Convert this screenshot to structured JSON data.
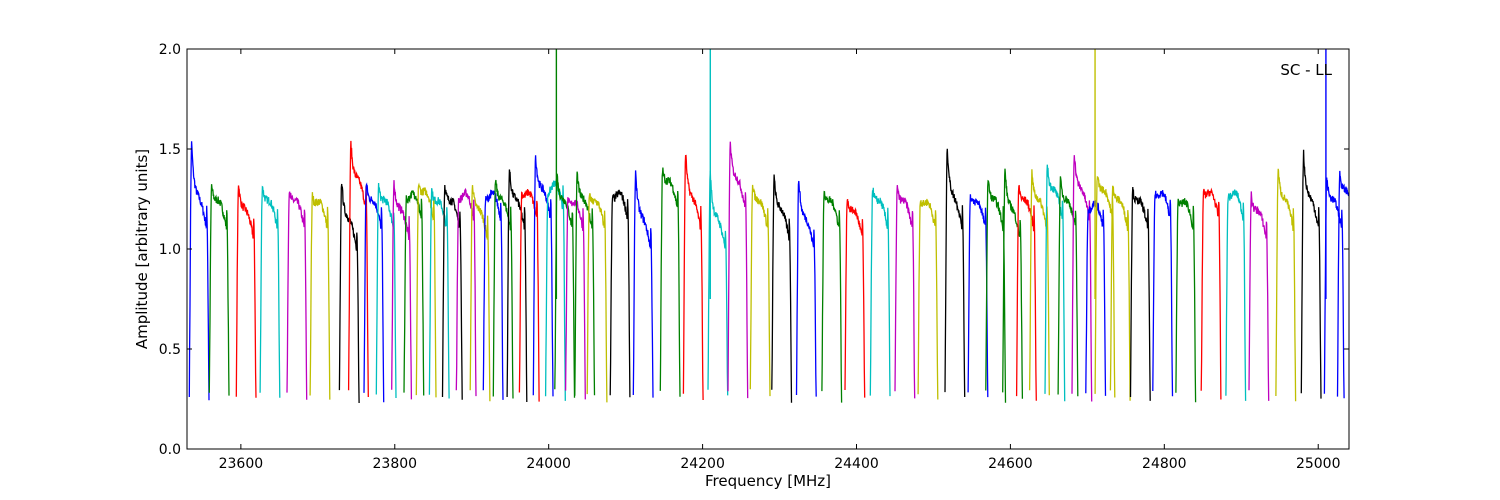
{
  "chart_data": {
    "type": "line",
    "xlabel": "Frequency [MHz]",
    "ylabel": "Amplitude [arbitrary units]",
    "annotation": "SC - LL",
    "annotation_position": "top-right",
    "xlim": [
      23530,
      25040
    ],
    "ylim": [
      0.0,
      2.0
    ],
    "xticks": [
      23600,
      23800,
      24000,
      24200,
      24400,
      24600,
      24800,
      25000
    ],
    "yticks": [
      0.0,
      0.5,
      1.0,
      1.5,
      2.0
    ],
    "xtick_labels": [
      "23600",
      "23800",
      "24000",
      "24200",
      "24400",
      "24600",
      "24800",
      "25000"
    ],
    "ytick_labels": [
      "0.0",
      "0.5",
      "1.0",
      "1.5",
      "2.0"
    ],
    "grid": false,
    "legend": false,
    "colors": [
      "#0000ff",
      "#008000",
      "#ff0000",
      "#00bfbf",
      "#bf00bf",
      "#bfbf00",
      "#000000"
    ],
    "segment_width_mhz": 25.6,
    "segments": [
      {
        "start": 23533,
        "peak": 1.53,
        "mid": 1.1,
        "color": "#0000ff"
      },
      {
        "start": 23559,
        "peak": 1.32,
        "mid": 1.1,
        "color": "#008000"
      },
      {
        "start": 23594,
        "peak": 1.33,
        "mid": 1.05,
        "color": "#ff0000"
      },
      {
        "start": 23625,
        "peak": 1.32,
        "mid": 1.1,
        "color": "#00bfbf"
      },
      {
        "start": 23660,
        "peak": 1.3,
        "mid": 1.1,
        "color": "#bf00bf"
      },
      {
        "start": 23690,
        "peak": 1.27,
        "mid": 1.1,
        "color": "#bfbf00"
      },
      {
        "start": 23728,
        "peak": 1.34,
        "mid": 1.0,
        "color": "#000000"
      },
      {
        "start": 23740,
        "peak": 1.53,
        "mid": 1.2,
        "color": "#ff0000"
      },
      {
        "start": 23760,
        "peak": 1.33,
        "mid": 1.1,
        "color": "#0000ff"
      },
      {
        "start": 23776,
        "peak": 1.32,
        "mid": 1.1,
        "color": "#00bfbf"
      },
      {
        "start": 23796,
        "peak": 1.34,
        "mid": 1.05,
        "color": "#bf00bf"
      },
      {
        "start": 23812,
        "peak": 1.25,
        "mid": 1.15,
        "color": "#008000"
      },
      {
        "start": 23828,
        "peak": 1.33,
        "mid": 1.15,
        "color": "#bfbf00"
      },
      {
        "start": 23845,
        "peak": 1.3,
        "mid": 1.1,
        "color": "#00bfbf"
      },
      {
        "start": 23862,
        "peak": 1.32,
        "mid": 1.1,
        "color": "#000000"
      },
      {
        "start": 23880,
        "peak": 1.25,
        "mid": 1.15,
        "color": "#bf00bf"
      },
      {
        "start": 23898,
        "peak": 1.33,
        "mid": 1.05,
        "color": "#bfbf00"
      },
      {
        "start": 23915,
        "peak": 1.25,
        "mid": 1.15,
        "color": "#0000ff"
      },
      {
        "start": 23928,
        "peak": 1.35,
        "mid": 1.1,
        "color": "#008000"
      },
      {
        "start": 23946,
        "peak": 1.4,
        "mid": 1.1,
        "color": "#000000"
      },
      {
        "start": 23962,
        "peak": 1.28,
        "mid": 1.15,
        "color": "#ff0000"
      },
      {
        "start": 23980,
        "peak": 1.47,
        "mid": 1.15,
        "color": "#0000ff"
      },
      {
        "start": 23996,
        "peak": 1.28,
        "mid": 1.2,
        "color": "#00bfbf"
      },
      {
        "start": 24008,
        "peak": 1.37,
        "mid": 1.1,
        "color": "#008000"
      },
      {
        "start": 24022,
        "peak": 1.25,
        "mid": 1.1,
        "color": "#bf00bf"
      },
      {
        "start": 24034,
        "peak": 1.38,
        "mid": 1.1,
        "color": "#008000"
      },
      {
        "start": 24050,
        "peak": 1.28,
        "mid": 1.1,
        "color": "#bfbf00"
      },
      {
        "start": 24080,
        "peak": 1.26,
        "mid": 1.15,
        "color": "#000000"
      },
      {
        "start": 24110,
        "peak": 1.39,
        "mid": 1.0,
        "color": "#0000ff"
      },
      {
        "start": 24145,
        "peak": 1.4,
        "mid": 1.2,
        "color": "#008000"
      },
      {
        "start": 24175,
        "peak": 1.48,
        "mid": 1.1,
        "color": "#ff0000"
      },
      {
        "start": 24207,
        "peak": 1.38,
        "mid": 1.0,
        "color": "#00bfbf"
      },
      {
        "start": 24233,
        "peak": 1.53,
        "mid": 1.2,
        "color": "#bf00bf"
      },
      {
        "start": 24262,
        "peak": 1.33,
        "mid": 1.1,
        "color": "#bfbf00"
      },
      {
        "start": 24290,
        "peak": 1.36,
        "mid": 1.05,
        "color": "#000000"
      },
      {
        "start": 24322,
        "peak": 1.35,
        "mid": 1.0,
        "color": "#0000ff"
      },
      {
        "start": 24355,
        "peak": 1.3,
        "mid": 1.1,
        "color": "#008000"
      },
      {
        "start": 24385,
        "peak": 1.26,
        "mid": 1.05,
        "color": "#ff0000"
      },
      {
        "start": 24418,
        "peak": 1.31,
        "mid": 1.1,
        "color": "#00bfbf"
      },
      {
        "start": 24450,
        "peak": 1.31,
        "mid": 1.1,
        "color": "#bf00bf"
      },
      {
        "start": 24480,
        "peak": 1.25,
        "mid": 1.1,
        "color": "#bfbf00"
      },
      {
        "start": 24515,
        "peak": 1.51,
        "mid": 1.1,
        "color": "#000000"
      },
      {
        "start": 24545,
        "peak": 1.27,
        "mid": 1.1,
        "color": "#0000ff"
      },
      {
        "start": 24568,
        "peak": 1.35,
        "mid": 1.1,
        "color": "#008000"
      },
      {
        "start": 24590,
        "peak": 1.4,
        "mid": 1.05,
        "color": "#008000"
      },
      {
        "start": 24608,
        "peak": 1.32,
        "mid": 1.1,
        "color": "#ff0000"
      },
      {
        "start": 24625,
        "peak": 1.38,
        "mid": 1.1,
        "color": "#bfbf00"
      },
      {
        "start": 24645,
        "peak": 1.42,
        "mid": 1.15,
        "color": "#00bfbf"
      },
      {
        "start": 24662,
        "peak": 1.35,
        "mid": 1.1,
        "color": "#008000"
      },
      {
        "start": 24680,
        "peak": 1.48,
        "mid": 1.15,
        "color": "#bf00bf"
      },
      {
        "start": 24698,
        "peak": 1.2,
        "mid": 1.1,
        "color": "#0000ff"
      },
      {
        "start": 24710,
        "peak": 1.38,
        "mid": 1.15,
        "color": "#bfbf00"
      },
      {
        "start": 24730,
        "peak": 1.33,
        "mid": 1.1,
        "color": "#bfbf00"
      },
      {
        "start": 24756,
        "peak": 1.3,
        "mid": 1.1,
        "color": "#000000"
      },
      {
        "start": 24785,
        "peak": 1.28,
        "mid": 1.15,
        "color": "#0000ff"
      },
      {
        "start": 24815,
        "peak": 1.25,
        "mid": 1.1,
        "color": "#008000"
      },
      {
        "start": 24848,
        "peak": 1.29,
        "mid": 1.15,
        "color": "#ff0000"
      },
      {
        "start": 24880,
        "peak": 1.27,
        "mid": 1.15,
        "color": "#00bfbf"
      },
      {
        "start": 24910,
        "peak": 1.27,
        "mid": 1.05,
        "color": "#bf00bf"
      },
      {
        "start": 24945,
        "peak": 1.4,
        "mid": 1.1,
        "color": "#bfbf00"
      },
      {
        "start": 24978,
        "peak": 1.48,
        "mid": 1.1,
        "color": "#000000"
      },
      {
        "start": 25008,
        "peak": 1.36,
        "mid": 1.1,
        "color": "#0000ff"
      },
      {
        "start": 25025,
        "peak": 1.38,
        "mid": 1.15,
        "color": "#0000ff"
      }
    ],
    "spikes": [
      {
        "x": 24010,
        "y": 2.0,
        "color": "#008000"
      },
      {
        "x": 24210,
        "y": 2.0,
        "color": "#00bfbf"
      },
      {
        "x": 24710,
        "y": 2.0,
        "color": "#bfbf00"
      },
      {
        "x": 25010,
        "y": 2.0,
        "color": "#0000ff"
      }
    ]
  }
}
